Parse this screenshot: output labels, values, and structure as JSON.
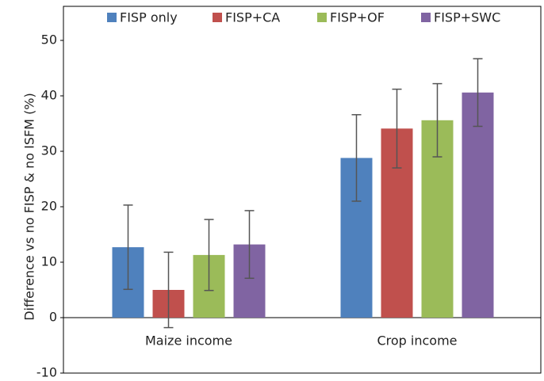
{
  "chart_data": {
    "type": "bar",
    "y_label": "Difference vs no FISP & no ISFM (%)",
    "categories": [
      "Maize income",
      "Crop income"
    ],
    "series": [
      {
        "name": "FISP only",
        "color": "#4f81bd",
        "values": [
          12.7,
          28.8
        ],
        "errors": [
          7.6,
          7.8
        ]
      },
      {
        "name": "FISP+CA",
        "color": "#c0504d",
        "values": [
          5.0,
          34.1
        ],
        "errors": [
          6.8,
          7.1
        ]
      },
      {
        "name": "FISP+OF",
        "color": "#9bbb59",
        "values": [
          11.3,
          35.6
        ],
        "errors": [
          6.4,
          6.6
        ]
      },
      {
        "name": "FISP+SWC",
        "color": "#8064a2",
        "values": [
          13.2,
          40.6
        ],
        "errors": [
          6.1,
          6.1
        ]
      }
    ],
    "ylim": [
      -10,
      50
    ],
    "yticks": [
      -10,
      0,
      10,
      20,
      30,
      40,
      50
    ],
    "grid": false,
    "legend": "top"
  }
}
